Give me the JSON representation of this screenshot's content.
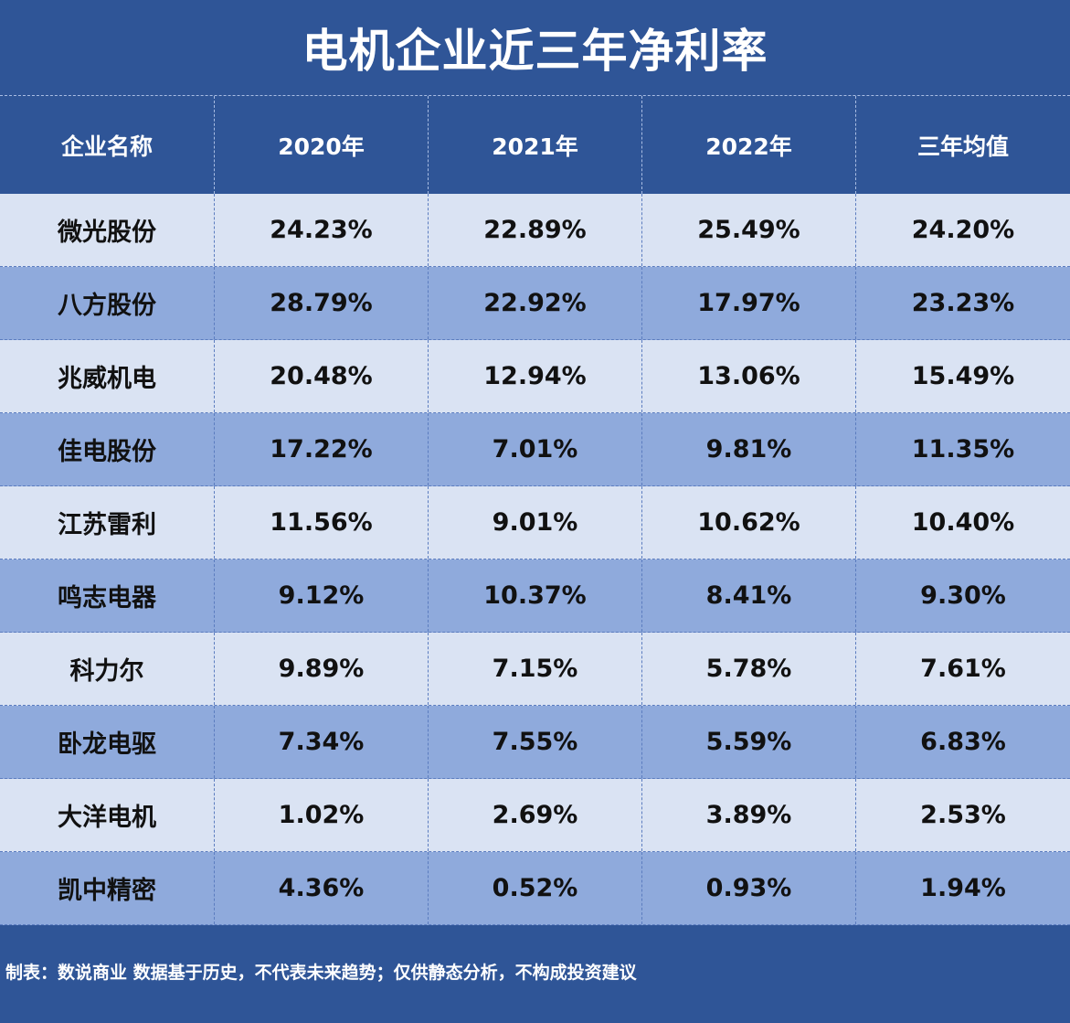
{
  "title": "电机企业近三年净利率",
  "headers": [
    "企业名称",
    "2020年",
    "2021年",
    "2022年",
    "三年均值"
  ],
  "rows": [
    {
      "name": "微光股份",
      "y2020": "24.23%",
      "y2021": "22.89%",
      "y2022": "25.49%",
      "avg": "24.20%"
    },
    {
      "name": "八方股份",
      "y2020": "28.79%",
      "y2021": "22.92%",
      "y2022": "17.97%",
      "avg": "23.23%"
    },
    {
      "name": "兆威机电",
      "y2020": "20.48%",
      "y2021": "12.94%",
      "y2022": "13.06%",
      "avg": "15.49%"
    },
    {
      "name": "佳电股份",
      "y2020": "17.22%",
      "y2021": "7.01%",
      "y2022": "9.81%",
      "avg": "11.35%"
    },
    {
      "name": "江苏雷利",
      "y2020": "11.56%",
      "y2021": "9.01%",
      "y2022": "10.62%",
      "avg": "10.40%"
    },
    {
      "name": "鸣志电器",
      "y2020": "9.12%",
      "y2021": "10.37%",
      "y2022": "8.41%",
      "avg": "9.30%"
    },
    {
      "name": "科力尔",
      "y2020": "9.89%",
      "y2021": "7.15%",
      "y2022": "5.78%",
      "avg": "7.61%"
    },
    {
      "name": "卧龙电驱",
      "y2020": "7.34%",
      "y2021": "7.55%",
      "y2022": "5.59%",
      "avg": "6.83%"
    },
    {
      "name": "大洋电机",
      "y2020": "1.02%",
      "y2021": "2.69%",
      "y2022": "3.89%",
      "avg": "2.53%"
    },
    {
      "name": "凯中精密",
      "y2020": "4.36%",
      "y2021": "0.52%",
      "y2022": "0.93%",
      "avg": "1.94%"
    }
  ],
  "footer": "制表：数说商业 数据基于历史，不代表未来趋势；仅供静态分析，不构成投资建议",
  "colors": {
    "background": "#2f5597",
    "row_light": "#dae3f3",
    "row_dark": "#8faadc"
  }
}
